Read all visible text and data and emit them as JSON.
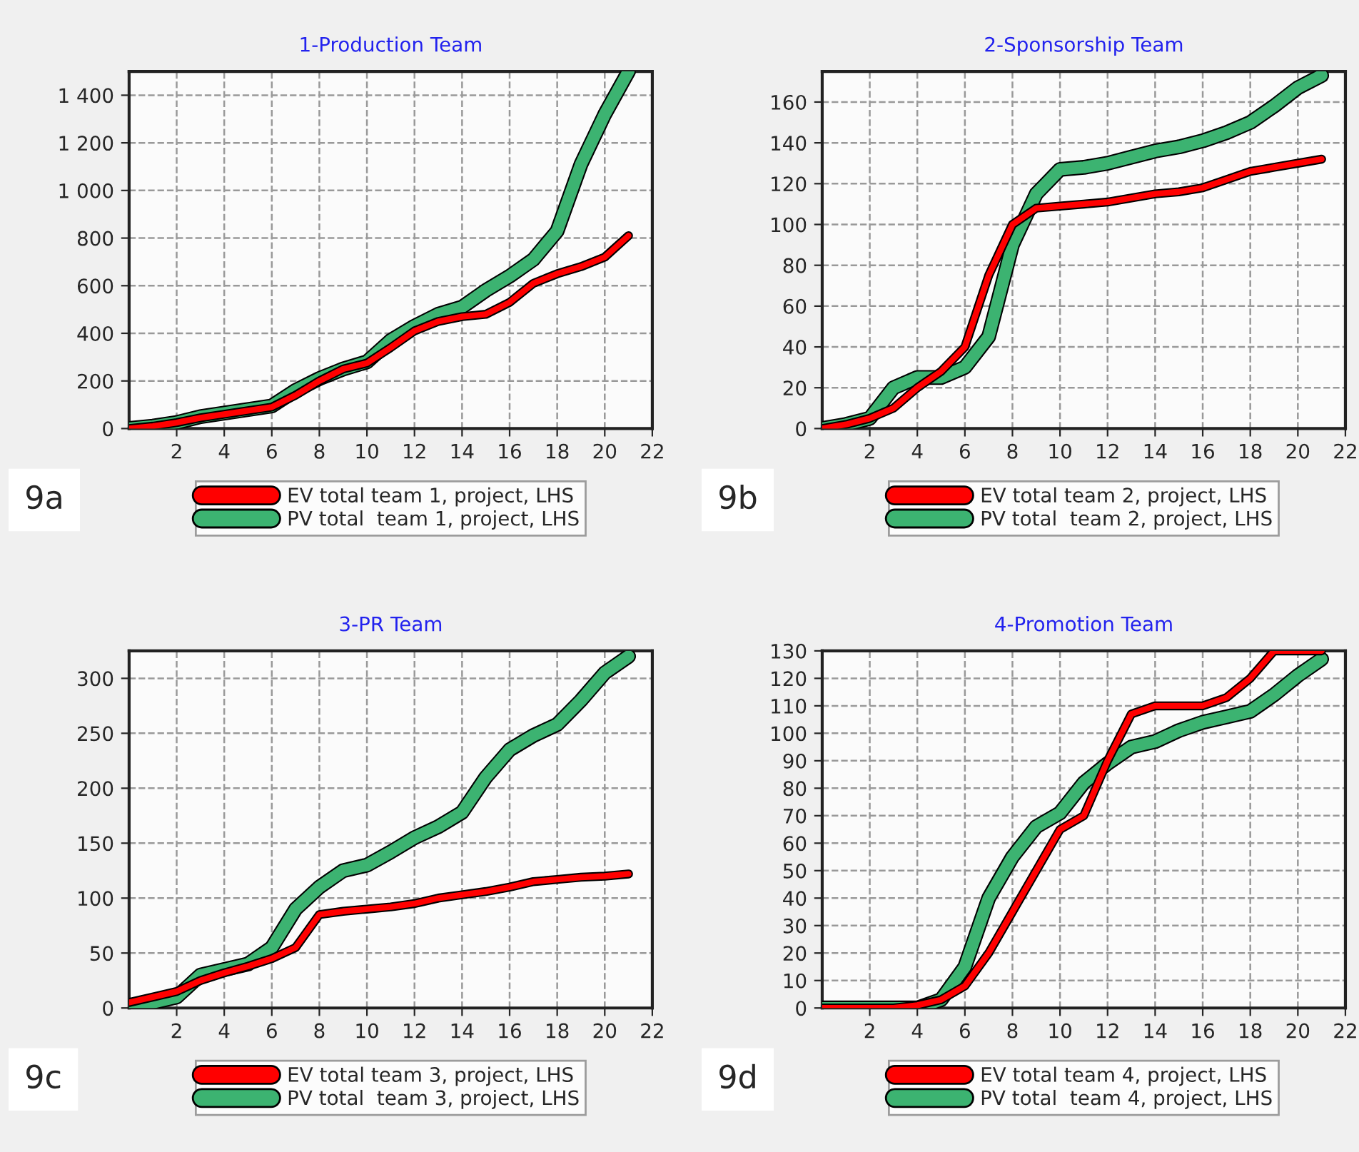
{
  "chart_data": [
    {
      "type": "line",
      "title": "1-Production Team",
      "x": [
        0,
        1,
        2,
        3,
        4,
        5,
        6,
        7,
        8,
        9,
        10,
        11,
        12,
        13,
        14,
        15,
        16,
        17,
        18,
        19,
        20,
        21
      ],
      "series": [
        {
          "name": "EV total team 1, project, LHS",
          "color": "#ff0000",
          "values": [
            0,
            10,
            25,
            45,
            60,
            75,
            90,
            140,
            200,
            250,
            275,
            340,
            410,
            450,
            470,
            480,
            530,
            610,
            650,
            680,
            720,
            810
          ]
        },
        {
          "name": "PV total  team 1, project, LHS",
          "color": "#3cb371",
          "values": [
            0,
            10,
            25,
            50,
            65,
            80,
            95,
            160,
            210,
            250,
            280,
            370,
            430,
            480,
            510,
            580,
            640,
            710,
            830,
            1110,
            1320,
            1500
          ]
        }
      ],
      "xlim": [
        0,
        22
      ],
      "xticks": [
        2,
        4,
        6,
        8,
        10,
        12,
        14,
        16,
        18,
        20,
        22
      ],
      "ylim": [
        0,
        1500
      ],
      "yticks": [
        0,
        200,
        400,
        600,
        800,
        {
          "value": 1000,
          "label": "1 000"
        },
        {
          "value": 1200,
          "label": "1 200"
        },
        {
          "value": 1400,
          "label": "1 400"
        }
      ],
      "grid": true,
      "legend": "bottom",
      "annotations": [
        "9a"
      ]
    },
    {
      "type": "line",
      "title": "2-Sponsorship Team",
      "x": [
        0,
        1,
        2,
        3,
        4,
        5,
        6,
        7,
        8,
        9,
        10,
        11,
        12,
        13,
        14,
        15,
        16,
        17,
        18,
        19,
        20,
        21
      ],
      "series": [
        {
          "name": "EV total team 2, project, LHS",
          "color": "#ff0000",
          "values": [
            0,
            2,
            5,
            10,
            20,
            28,
            40,
            75,
            100,
            108,
            109,
            110,
            111,
            113,
            115,
            116,
            118,
            122,
            126,
            128,
            130,
            132
          ]
        },
        {
          "name": "PV total  team 2, project, LHS",
          "color": "#3cb371",
          "values": [
            0,
            2,
            5,
            20,
            25,
            25,
            30,
            45,
            90,
            115,
            127,
            128,
            130,
            133,
            136,
            138,
            141,
            145,
            150,
            158,
            167,
            173
          ]
        }
      ],
      "xlim": [
        0,
        22
      ],
      "xticks": [
        2,
        4,
        6,
        8,
        10,
        12,
        14,
        16,
        18,
        20,
        22
      ],
      "ylim": [
        0,
        175
      ],
      "yticks": [
        0,
        20,
        40,
        60,
        80,
        100,
        120,
        140,
        160
      ],
      "grid": true,
      "legend": "bottom",
      "annotations": [
        "9b"
      ]
    },
    {
      "type": "line",
      "title": "3-PR Team",
      "x": [
        0,
        1,
        2,
        3,
        4,
        5,
        6,
        7,
        8,
        9,
        10,
        11,
        12,
        13,
        14,
        15,
        16,
        17,
        18,
        19,
        20,
        21
      ],
      "series": [
        {
          "name": "EV total team 3, project, LHS",
          "color": "#ff0000",
          "values": [
            5,
            10,
            15,
            25,
            32,
            38,
            45,
            55,
            85,
            88,
            90,
            92,
            95,
            100,
            103,
            106,
            110,
            115,
            117,
            119,
            120,
            122
          ]
        },
        {
          "name": "PV total  team 3, project, LHS",
          "color": "#3cb371",
          "values": [
            0,
            5,
            10,
            30,
            35,
            40,
            55,
            90,
            110,
            125,
            130,
            142,
            155,
            165,
            178,
            210,
            235,
            248,
            258,
            280,
            305,
            320
          ]
        }
      ],
      "xlim": [
        0,
        22
      ],
      "xticks": [
        2,
        4,
        6,
        8,
        10,
        12,
        14,
        16,
        18,
        20,
        22
      ],
      "ylim": [
        0,
        325
      ],
      "yticks": [
        0,
        50,
        100,
        150,
        200,
        250,
        300
      ],
      "grid": true,
      "legend": "bottom",
      "annotations": [
        "9c"
      ]
    },
    {
      "type": "line",
      "title": "4-Promotion Team",
      "x": [
        0,
        1,
        2,
        3,
        4,
        5,
        6,
        7,
        8,
        9,
        10,
        11,
        12,
        13,
        14,
        15,
        16,
        17,
        18,
        19,
        20,
        21
      ],
      "series": [
        {
          "name": "EV total team 4, project, LHS",
          "color": "#ff0000",
          "values": [
            0,
            0,
            0,
            0,
            1,
            3,
            8,
            20,
            35,
            50,
            65,
            70,
            90,
            107,
            110,
            110,
            110,
            113,
            120,
            130,
            130,
            130
          ]
        },
        {
          "name": "PV total  team 4, project, LHS",
          "color": "#3cb371",
          "values": [
            0,
            0,
            0,
            0,
            0,
            3,
            15,
            40,
            55,
            66,
            71,
            82,
            89,
            95,
            97,
            101,
            104,
            106,
            108,
            114,
            121,
            127
          ]
        }
      ],
      "xlim": [
        0,
        22
      ],
      "xticks": [
        2,
        4,
        6,
        8,
        10,
        12,
        14,
        16,
        18,
        20,
        22
      ],
      "ylim": [
        0,
        130
      ],
      "yticks": [
        0,
        10,
        20,
        30,
        40,
        50,
        60,
        70,
        80,
        90,
        100,
        110,
        120,
        130
      ],
      "grid": true,
      "legend": "bottom",
      "annotations": [
        "9d"
      ]
    }
  ]
}
